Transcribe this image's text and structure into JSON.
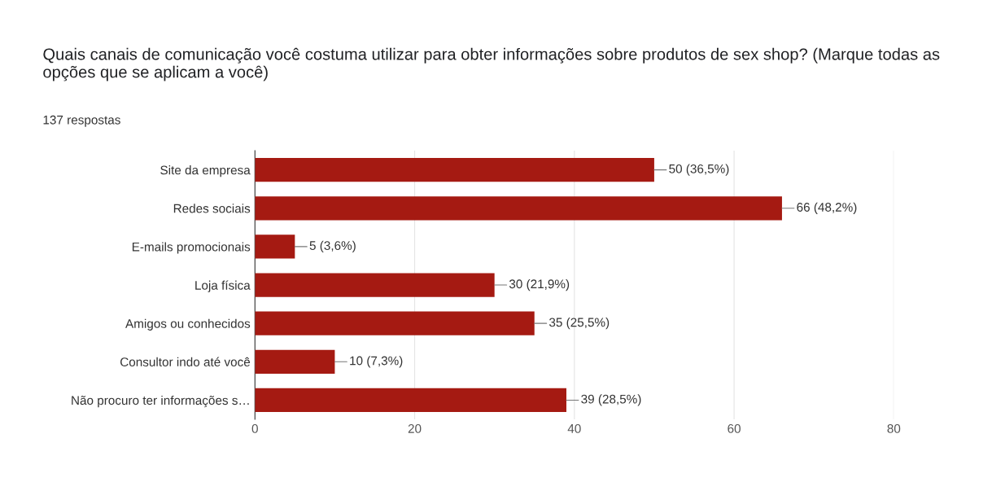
{
  "chart_data": {
    "type": "bar",
    "orientation": "horizontal",
    "title": "Quais canais de comunicação você costuma utilizar para obter informações sobre produtos de sex shop? (Marque todas as opções que se aplicam a você)",
    "subtitle": "137 respostas",
    "categories": [
      "Site da empresa",
      "Redes sociais",
      "E-mails promocionais",
      "Loja física",
      "Amigos ou conhecidos",
      "Consultor indo até você",
      "Não procuro ter informações s…"
    ],
    "values": [
      50,
      66,
      5,
      30,
      35,
      10,
      39
    ],
    "value_labels": [
      "50 (36,5%)",
      "66 (48,2%)",
      "5 (3,6%)",
      "30 (21,9%)",
      "35 (25,5%)",
      "10 (7,3%)",
      "39 (28,5%)"
    ],
    "color": "#a51a12",
    "xlim": [
      0,
      80
    ],
    "xticks": [
      0,
      20,
      40,
      60,
      80
    ],
    "grid": "x"
  }
}
